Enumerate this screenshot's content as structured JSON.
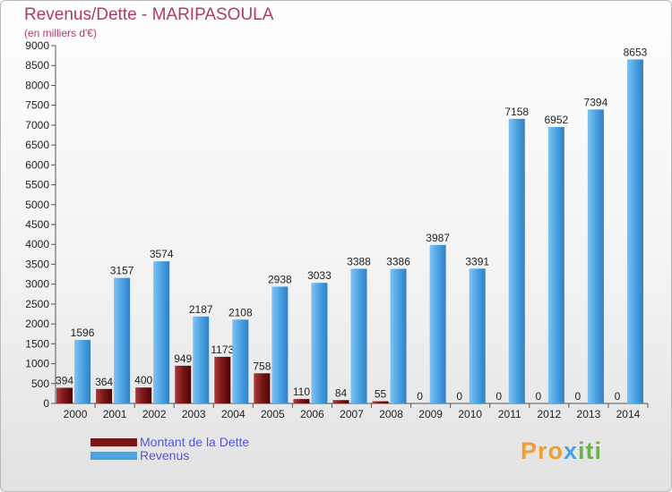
{
  "title": "Revenus/Dette - MARIPASOULA",
  "subtitle": "(en milliers d'€)",
  "logo_text": "Proxiti",
  "chart_data": {
    "type": "bar",
    "title": "Revenus/Dette - MARIPASOULA",
    "ylabel": "(en milliers d'€)",
    "categories": [
      "2000",
      "2001",
      "2002",
      "2003",
      "2004",
      "2005",
      "2006",
      "2007",
      "2008",
      "2009",
      "2010",
      "2011",
      "2012",
      "2013",
      "2014"
    ],
    "series": [
      {
        "name": "Montant de la Dette",
        "color": "#7a1616",
        "values": [
          394,
          364,
          400,
          949,
          1173,
          758,
          110,
          84,
          55,
          0,
          0,
          0,
          0,
          0,
          0
        ]
      },
      {
        "name": "Revenus",
        "color": "#4ba3e3",
        "values": [
          1596,
          3157,
          3574,
          2187,
          2108,
          2938,
          3033,
          3388,
          3386,
          3987,
          3391,
          7158,
          6952,
          7394,
          8653
        ]
      }
    ],
    "ylim": [
      0,
      9000
    ],
    "yticks": [
      0,
      500,
      1000,
      1500,
      2000,
      2500,
      3000,
      3500,
      4000,
      4500,
      5000,
      5500,
      6000,
      6500,
      7000,
      7500,
      8000,
      8500,
      9000
    ],
    "grid": false,
    "legend_position": "bottom-left"
  }
}
